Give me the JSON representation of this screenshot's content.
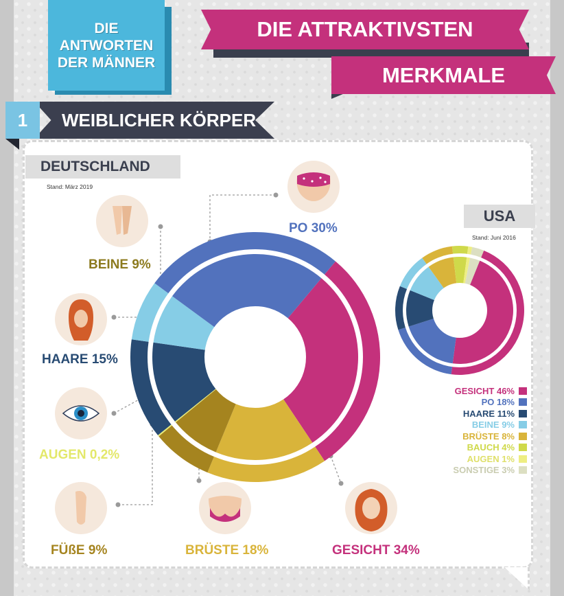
{
  "header": {
    "badge": "DIE\nANTWORTEN\nDER MÄNNER",
    "title_line1": "DIE ATTRAKTIVSTEN",
    "title_line2": "MERKMALE",
    "section_number": "1",
    "section_title": "WEIBLICHER KÖRPER"
  },
  "chart_data": [
    {
      "type": "pie",
      "title": "DEUTSCHLAND",
      "subtitle": "Stand: März 2019",
      "slices": [
        {
          "label": "GESICHT",
          "value": 34,
          "display": "GESICHT 34%",
          "color": "#c4317c"
        },
        {
          "label": "BRÜSTE",
          "value": 18,
          "display": "BRÜSTE 18%",
          "color": "#d9b43a"
        },
        {
          "label": "FÜßE",
          "value": 9,
          "display": "FÜßE 9%",
          "color": "#a5841f"
        },
        {
          "label": "AUGEN",
          "value": 0.2,
          "display": "AUGEN 0,2%",
          "color": "#e8ec76"
        },
        {
          "label": "HAARE",
          "value": 15,
          "display": "HAARE 15%",
          "color": "#284b73"
        },
        {
          "label": "BEINE",
          "value": 9,
          "display": "BEINE 9%",
          "color": "#86cde6"
        },
        {
          "label": "PO",
          "value": 30,
          "display": "PO 30%",
          "color": "#5272bd"
        }
      ]
    },
    {
      "type": "pie",
      "title": "USA",
      "subtitle": "Stand: Juni 2016",
      "slices": [
        {
          "label": "GESICHT",
          "value": 46,
          "display": "GESICHT 46%",
          "color": "#c4317c"
        },
        {
          "label": "PO",
          "value": 18,
          "display": "PO 18%",
          "color": "#5272bd"
        },
        {
          "label": "HAARE",
          "value": 11,
          "display": "HAARE 11%",
          "color": "#284b73"
        },
        {
          "label": "BEINE",
          "value": 9,
          "display": "BEINE 9%",
          "color": "#86cde6"
        },
        {
          "label": "BRÜSTE",
          "value": 8,
          "display": "BRÜSTE 8%",
          "color": "#d9b43a"
        },
        {
          "label": "BAUCH",
          "value": 4,
          "display": "BAUCH 4%",
          "color": "#cfd94a"
        },
        {
          "label": "AUGEN",
          "value": 1,
          "display": "AUGEN 1%",
          "color": "#eeee82"
        },
        {
          "label": "SONSTIGE",
          "value": 3,
          "display": "SONSTIGE 3%",
          "color": "#dcdfc2"
        }
      ]
    }
  ],
  "icons": {
    "po": "buttocks-icon",
    "beine": "legs-icon",
    "haare": "hair-icon",
    "augen": "eye-icon",
    "fuesse": "foot-icon",
    "brueste": "chest-icon",
    "gesicht": "face-icon"
  }
}
